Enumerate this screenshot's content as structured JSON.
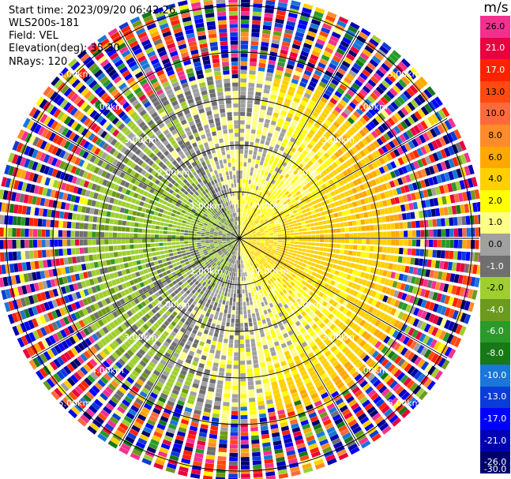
{
  "header": {
    "start_time": "Start time: 2023/09/20 06:42:26",
    "instrument": "WLS200s-181",
    "field": "Field: VEL",
    "elevation": "Elevation(deg): 35.30",
    "nrays": "NRays: 120"
  },
  "colorbar": {
    "unit": "m/s",
    "ticks": [
      "26.0",
      "21.0",
      "17.0",
      "13.0",
      "10.0",
      "8.0",
      "6.0",
      "4.0",
      "2.0",
      "1.0",
      "0.0",
      "-1.0",
      "-2.0",
      "-4.0",
      "-6.0",
      "-8.0",
      "-10.0",
      "-13.0",
      "-17.0",
      "-21.0",
      "-26.0",
      "-30.0"
    ],
    "colors": [
      "#f2318f",
      "#e8003f",
      "#ff2200",
      "#ff4a10",
      "#ff6a3a",
      "#ff8c28",
      "#ffa800",
      "#ffd000",
      "#ffff00",
      "#fffe84",
      "#a0a0a0",
      "#6f6f6f",
      "#9fcf2f",
      "#6c9a1c",
      "#2a9a2a",
      "#167816",
      "#1a76d8",
      "#0c3cd8",
      "#0000ff",
      "#0000b4",
      "#00006c"
    ]
  },
  "chart_data": {
    "type": "heatmap",
    "projection": "polar PPI (plan position indicator)",
    "field": "VEL",
    "units": "m/s",
    "n_rays": 120,
    "elevation_deg": 35.3,
    "range_rings_km": [
      1.0,
      2.0,
      3.0,
      4.0,
      5.0
    ],
    "ring_labels": [
      "1.00km",
      "2.00km",
      "3.00km",
      "4.00km",
      "5.00km"
    ],
    "max_range_km": 5.15,
    "color_scale_min": -30.0,
    "color_scale_max": 26.0,
    "pattern": {
      "west_half": "negative velocities (-4.0 to -1.0 m/s, green)",
      "east_half": "positive velocities (1.0 to 4.0 m/s, yellow/orange)",
      "beyond_3.5km": "noisy multicolor returns spanning full scale"
    }
  }
}
